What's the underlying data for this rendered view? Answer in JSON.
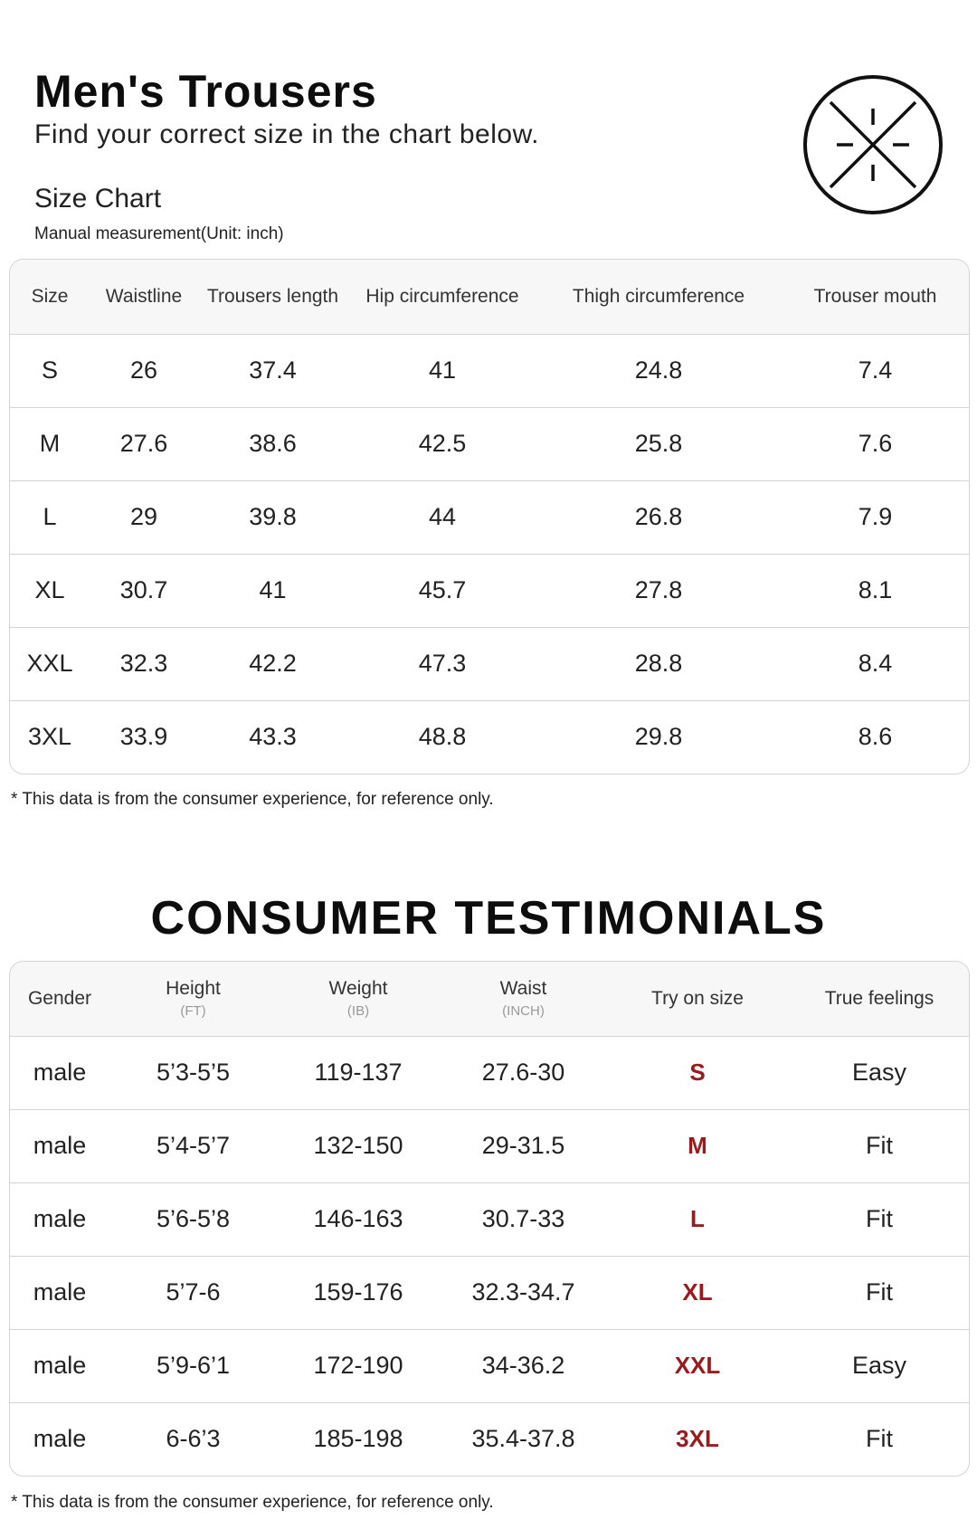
{
  "header": {
    "title": "Men's Trousers",
    "subtitle": "Find your correct size in the chart below.",
    "chart_label": "Size Chart",
    "unit_note": "Manual measurement(Unit: inch)"
  },
  "size_chart": {
    "columns": [
      "Size",
      "Waistline",
      "Trousers length",
      "Hip circumference",
      "Thigh circumference",
      "Trouser mouth"
    ],
    "rows": [
      [
        "S",
        "26",
        "37.4",
        "41",
        "24.8",
        "7.4"
      ],
      [
        "M",
        "27.6",
        "38.6",
        "42.5",
        "25.8",
        "7.6"
      ],
      [
        "L",
        "29",
        "39.8",
        "44",
        "26.8",
        "7.9"
      ],
      [
        "XL",
        "30.7",
        "41",
        "45.7",
        "27.8",
        "8.1"
      ],
      [
        "XXL",
        "32.3",
        "42.2",
        "47.3",
        "28.8",
        "8.4"
      ],
      [
        "3XL",
        "33.9",
        "43.3",
        "48.8",
        "29.8",
        "8.6"
      ]
    ],
    "footnote": "* This data is from the consumer experience, for reference only."
  },
  "testimonials": {
    "title": "CONSUMER TESTIMONIALS",
    "columns": [
      {
        "label": "Gender",
        "unit": ""
      },
      {
        "label": "Height",
        "unit": "(FT)"
      },
      {
        "label": "Weight",
        "unit": "(IB)"
      },
      {
        "label": "Waist",
        "unit": "(INCH)"
      },
      {
        "label": "Try on size",
        "unit": ""
      },
      {
        "label": "True feelings",
        "unit": ""
      }
    ],
    "rows": [
      [
        "male",
        "5’3-5’5",
        "119-137",
        "27.6-30",
        "S",
        "Easy"
      ],
      [
        "male",
        "5’4-5’7",
        "132-150",
        "29-31.5",
        "M",
        "Fit"
      ],
      [
        "male",
        "5’6-5’8",
        "146-163",
        "30.7-33",
        "L",
        "Fit"
      ],
      [
        "male",
        "5’7-6",
        "159-176",
        "32.3-34.7",
        "XL",
        "Fit"
      ],
      [
        "male",
        "5’9-6’1",
        "172-190",
        "34-36.2",
        "XXL",
        "Easy"
      ],
      [
        "male",
        "6-6’3",
        "185-198",
        "35.4-37.8",
        "3XL",
        "Fit"
      ]
    ],
    "footnote": "* This data is from the consumer experience, for reference only."
  },
  "colors": {
    "size_highlight": "#9a1b1e",
    "border": "#d4d4d4",
    "header_bg": "#f7f7f7"
  },
  "icons": {
    "logo": "brand-cross-circle-logo"
  }
}
